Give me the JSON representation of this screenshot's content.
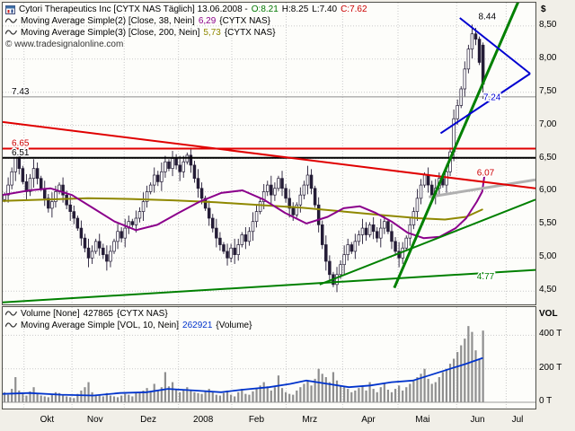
{
  "colors": {
    "background": "#f1efe8",
    "panel_bg": "#fdfdfa",
    "grid": "#c9c9c9",
    "candle_stroke": "#241c36",
    "up_candle": "#ffffff",
    "down_candle": "#241c36",
    "ma38": "#8b008b",
    "ma200": "#8f8800",
    "red_line": "#e00000",
    "black_line": "#000000",
    "gray_line": "#8c8c8c",
    "gray_segment": "#b0b0b0",
    "green_line": "#008000",
    "blue_line": "#0000d0",
    "volume_bar": "#8f8f8f",
    "volume_ma": "#0033cc",
    "open_text": "#007700",
    "close_text": "#cc0000"
  },
  "legend": {
    "line1": {
      "title": "Cytori Therapeutics Inc [CYTX NAS Täglich] 13.06.2008 -",
      "o": "O:8.21",
      "h": "H:8.25",
      "l": "L:7.40",
      "c": "C:7.62"
    },
    "line2": {
      "prefix": "Moving Average Simple(2) [Close, 38, Nein]",
      "value": "6,29",
      "suffix": "{CYTX NAS}"
    },
    "line3": {
      "prefix": "Moving Average Simple(3) [Close, 200, Nein]",
      "value": "5,73",
      "suffix": "{CYTX NAS}"
    },
    "copyright": "© www.tradesignalonline.com"
  },
  "volume_legend": {
    "line1": {
      "prefix": "Volume [None]",
      "value": "427865",
      "suffix": "{CYTX NAS}"
    },
    "line2": {
      "prefix": "Moving Average Simple [VOL, 10, Nein]",
      "value": "262921",
      "suffix": "{Volume}"
    }
  },
  "chart_data": {
    "type": "candlestick",
    "instrument": "Cytori Therapeutics Inc",
    "symbol": "CYTX NAS",
    "period": "Täglich",
    "date": "13.06.2008",
    "last": {
      "o": 8.21,
      "h": 8.25,
      "l": 7.4,
      "c": 7.62
    },
    "first_open": 5.88,
    "data_width": 0.905,
    "closes": [
      5.95,
      6.1,
      6.3,
      6.55,
      6.35,
      6.15,
      6.0,
      6.2,
      6.35,
      6.2,
      6.05,
      5.9,
      5.75,
      5.85,
      6.0,
      6.1,
      5.95,
      5.8,
      5.7,
      5.6,
      5.45,
      5.3,
      5.15,
      5.0,
      5.1,
      5.25,
      5.15,
      5.05,
      4.95,
      5.1,
      5.25,
      5.4,
      5.3,
      5.45,
      5.55,
      5.5,
      5.6,
      5.7,
      5.85,
      6.0,
      6.1,
      6.25,
      6.15,
      6.3,
      6.45,
      6.35,
      6.5,
      6.4,
      6.3,
      6.45,
      6.55,
      6.4,
      6.2,
      6.05,
      5.9,
      5.75,
      5.6,
      5.45,
      5.3,
      5.2,
      5.1,
      5.0,
      5.15,
      5.05,
      5.2,
      5.35,
      5.25,
      5.4,
      5.55,
      5.7,
      5.85,
      6.0,
      6.1,
      5.95,
      6.05,
      6.2,
      6.05,
      5.9,
      5.75,
      5.65,
      5.8,
      5.95,
      6.1,
      6.25,
      6.05,
      5.8,
      5.5,
      5.2,
      4.95,
      4.75,
      4.6,
      4.75,
      4.9,
      5.05,
      5.2,
      5.1,
      5.25,
      5.35,
      5.45,
      5.35,
      5.5,
      5.4,
      5.3,
      5.45,
      5.55,
      5.4,
      5.25,
      5.1,
      5.0,
      5.15,
      5.3,
      5.5,
      5.7,
      5.9,
      6.1,
      6.25,
      6.1,
      5.95,
      6.05,
      6.2,
      6.1,
      6.3,
      6.6,
      7.1,
      7.3,
      7.55,
      7.85,
      8.15,
      8.38,
      8.3,
      7.95,
      7.62
    ],
    "volumes_thousands": [
      60,
      45,
      80,
      150,
      70,
      55,
      40,
      65,
      90,
      50,
      40,
      35,
      30,
      45,
      60,
      55,
      40,
      35,
      30,
      25,
      50,
      70,
      90,
      120,
      60,
      45,
      40,
      35,
      55,
      40,
      35,
      30,
      40,
      50,
      45,
      35,
      55,
      60,
      70,
      85,
      60,
      110,
      75,
      90,
      180,
      95,
      120,
      80,
      60,
      75,
      90,
      70,
      60,
      55,
      50,
      65,
      80,
      60,
      45,
      40,
      55,
      70,
      45,
      35,
      60,
      80,
      50,
      45,
      65,
      85,
      100,
      120,
      95,
      70,
      90,
      160,
      85,
      60,
      50,
      45,
      70,
      90,
      110,
      130,
      100,
      140,
      200,
      170,
      150,
      120,
      180,
      130,
      100,
      90,
      80,
      60,
      70,
      85,
      95,
      70,
      120,
      80,
      60,
      90,
      110,
      75,
      60,
      80,
      100,
      70,
      90,
      110,
      130,
      150,
      170,
      200,
      140,
      110,
      120,
      150,
      180,
      200,
      230,
      260,
      300,
      340,
      380,
      455,
      420,
      310,
      260,
      428
    ],
    "ma38_value": 6.29,
    "ma200_value": 5.73,
    "volume_ma_value": 263,
    "ma38_anchors": [
      [
        0,
        5.95
      ],
      [
        0.05,
        6.02
      ],
      [
        0.09,
        6.05
      ],
      [
        0.13,
        5.95
      ],
      [
        0.17,
        5.75
      ],
      [
        0.21,
        5.55
      ],
      [
        0.25,
        5.42
      ],
      [
        0.29,
        5.5
      ],
      [
        0.33,
        5.68
      ],
      [
        0.37,
        5.85
      ],
      [
        0.41,
        5.98
      ],
      [
        0.45,
        6.02
      ],
      [
        0.49,
        5.88
      ],
      [
        0.53,
        5.68
      ],
      [
        0.57,
        5.52
      ],
      [
        0.61,
        5.62
      ],
      [
        0.64,
        5.75
      ],
      [
        0.67,
        5.78
      ],
      [
        0.7,
        5.68
      ],
      [
        0.73,
        5.55
      ],
      [
        0.76,
        5.38
      ],
      [
        0.79,
        5.3
      ],
      [
        0.82,
        5.32
      ],
      [
        0.85,
        5.45
      ],
      [
        0.87,
        5.6
      ],
      [
        0.89,
        5.85
      ],
      [
        0.9,
        6.0
      ],
      [
        0.905,
        6.29
      ]
    ],
    "ma200_anchors": [
      [
        0,
        5.86
      ],
      [
        0.08,
        5.88
      ],
      [
        0.16,
        5.9
      ],
      [
        0.24,
        5.89
      ],
      [
        0.32,
        5.87
      ],
      [
        0.4,
        5.84
      ],
      [
        0.48,
        5.8
      ],
      [
        0.56,
        5.76
      ],
      [
        0.64,
        5.7
      ],
      [
        0.72,
        5.64
      ],
      [
        0.78,
        5.6
      ],
      [
        0.83,
        5.58
      ],
      [
        0.87,
        5.62
      ],
      [
        0.9,
        5.73
      ]
    ],
    "volume_ma_anchors": [
      [
        0,
        50
      ],
      [
        0.05,
        55
      ],
      [
        0.11,
        45
      ],
      [
        0.17,
        40
      ],
      [
        0.22,
        55
      ],
      [
        0.27,
        60
      ],
      [
        0.31,
        80
      ],
      [
        0.36,
        70
      ],
      [
        0.41,
        60
      ],
      [
        0.45,
        75
      ],
      [
        0.5,
        90
      ],
      [
        0.54,
        110
      ],
      [
        0.57,
        130
      ],
      [
        0.61,
        110
      ],
      [
        0.65,
        90
      ],
      [
        0.69,
        100
      ],
      [
        0.73,
        120
      ],
      [
        0.77,
        130
      ],
      [
        0.8,
        160
      ],
      [
        0.84,
        200
      ],
      [
        0.87,
        230
      ],
      [
        0.9,
        263
      ]
    ],
    "price_axis": {
      "unit": "$",
      "min": 4.3,
      "max": 8.85,
      "ticks": [
        {
          "v": 8.5,
          "label": "8,50"
        },
        {
          "v": 8.0,
          "label": "8,00"
        },
        {
          "v": 7.5,
          "label": "7,50"
        },
        {
          "v": 7.0,
          "label": "7,00"
        },
        {
          "v": 6.5,
          "label": "6,50"
        },
        {
          "v": 6.0,
          "label": "6,00"
        },
        {
          "v": 5.5,
          "label": "5,50"
        },
        {
          "v": 5.0,
          "label": "5,00"
        },
        {
          "v": 4.5,
          "label": "4,50"
        }
      ]
    },
    "volume_axis": {
      "unit": "VOL",
      "max": 520,
      "ticks": [
        {
          "v": 400,
          "label": "400 T"
        },
        {
          "v": 200,
          "label": "200 T"
        },
        {
          "v": 0,
          "label": "0 T"
        }
      ]
    },
    "months": [
      {
        "label": "Okt",
        "x": 0.085
      },
      {
        "label": "Nov",
        "x": 0.175
      },
      {
        "label": "Dez",
        "x": 0.275
      },
      {
        "label": "2008",
        "x": 0.378
      },
      {
        "label": "Feb",
        "x": 0.478
      },
      {
        "label": "Mrz",
        "x": 0.578
      },
      {
        "label": "Apr",
        "x": 0.688
      },
      {
        "label": "Mai",
        "x": 0.79
      },
      {
        "label": "Jun",
        "x": 0.893
      },
      {
        "label": "Jul",
        "x": 0.968
      }
    ],
    "month_gridlines": [
      0.04,
      0.13,
      0.228,
      0.33,
      0.43,
      0.532,
      0.638,
      0.742,
      0.852,
      0.945
    ],
    "annotations": {
      "hlines": [
        {
          "price": 7.43,
          "label": "7.43",
          "color": "#8c8c8c",
          "label_color": "#000000",
          "width": 1
        },
        {
          "price": 6.65,
          "label": "6.65",
          "color": "#e00000",
          "label_color": "#cc0000",
          "width": 2
        },
        {
          "price": 6.51,
          "label": "6.51",
          "color": "#000000",
          "label_color": "#000000",
          "width": 2
        }
      ],
      "trendlines": [
        {
          "name": "gray-segment",
          "x1": 0.8,
          "p1": 5.92,
          "x2": 1.0,
          "p2": 6.18,
          "color": "#b0b0b0",
          "width": 3
        },
        {
          "name": "green-support-long",
          "x1": 0.0,
          "p1": 4.33,
          "x2": 1.0,
          "p2": 4.82,
          "color": "#008000",
          "width": 2
        },
        {
          "name": "green-support-mid",
          "x1": 0.595,
          "p1": 4.6,
          "x2": 1.0,
          "p2": 5.88,
          "color": "#008000",
          "width": 2
        },
        {
          "name": "red-downtrend",
          "x1": 0.0,
          "p1": 7.05,
          "x2": 1.0,
          "p2": 6.05,
          "color": "#e00000",
          "width": 2
        },
        {
          "name": "green-steep",
          "x1": 0.735,
          "p1": 4.55,
          "x2": 0.975,
          "p2": 9.0,
          "color": "#008000",
          "width": 3
        },
        {
          "name": "blue-upper",
          "x1": 0.858,
          "p1": 8.62,
          "x2": 0.99,
          "p2": 7.78,
          "color": "#0000d0",
          "width": 2
        },
        {
          "name": "blue-lower",
          "x1": 0.822,
          "p1": 6.88,
          "x2": 0.99,
          "p2": 7.78,
          "color": "#0000d0",
          "width": 2
        }
      ],
      "labels": [
        {
          "text": "8.44",
          "x": 0.893,
          "price": 8.6,
          "color": "#000000"
        },
        {
          "text": "7.24",
          "x": 0.902,
          "price": 7.38,
          "color": "#0000d0"
        },
        {
          "text": "6.07",
          "x": 0.89,
          "price": 6.24,
          "color": "#cc0000"
        },
        {
          "text": "4.77",
          "x": 0.89,
          "price": 4.68,
          "color": "#008000"
        }
      ]
    }
  }
}
